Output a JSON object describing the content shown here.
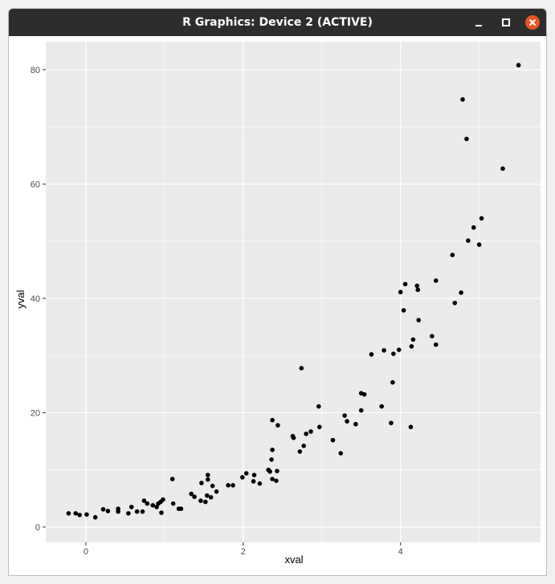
{
  "window": {
    "title": "R Graphics: Device 2 (ACTIVE)"
  },
  "chart_data": {
    "type": "scatter",
    "x_label": "xval",
    "y_label": "yval",
    "color": "#000000",
    "grid": true,
    "xlim": [
      -0.51,
      5.78
    ],
    "ylim": [
      -2.67,
      84.9
    ],
    "xticks": [
      0,
      2,
      4
    ],
    "yticks": [
      0,
      20,
      40,
      60,
      80
    ],
    "minor_xticks": [
      1,
      3,
      5
    ],
    "minor_yticks": [
      10,
      30,
      50,
      70
    ],
    "x": [
      -0.22,
      -0.13,
      -0.08,
      0.01,
      0.12,
      0.22,
      0.28,
      0.41,
      0.41,
      0.54,
      0.58,
      0.65,
      0.72,
      0.74,
      0.78,
      0.85,
      0.9,
      0.92,
      0.95,
      0.98,
      0.96,
      1.1,
      1.11,
      1.18,
      1.21,
      1.34,
      1.38,
      1.46,
      1.47,
      1.52,
      1.55,
      1.55,
      1.54,
      1.59,
      1.61,
      1.66,
      1.81,
      1.87,
      1.99,
      2.04,
      2.13,
      2.14,
      2.21,
      2.32,
      2.34,
      2.36,
      2.37,
      2.37,
      2.37,
      2.42,
      2.43,
      2.44,
      2.63,
      2.64,
      2.72,
      2.74,
      2.77,
      2.8,
      2.86,
      2.96,
      2.97,
      3.14,
      3.24,
      3.29,
      3.32,
      3.43,
      3.5,
      3.5,
      3.54,
      3.63,
      3.76,
      3.79,
      3.9,
      3.88,
      3.91,
      3.98,
      4.0,
      4.04,
      4.06,
      4.13,
      4.14,
      4.16,
      4.21,
      4.22,
      4.23,
      4.4,
      4.45,
      4.45,
      4.66,
      4.69,
      4.77,
      4.79,
      4.84,
      4.86,
      4.93,
      5.0,
      5.03,
      5.3,
      5.5
    ],
    "values": [
      2.4,
      2.4,
      2.1,
      2.2,
      1.7,
      3.1,
      2.8,
      3.2,
      2.7,
      2.4,
      3.5,
      2.7,
      2.7,
      4.6,
      4.1,
      3.8,
      3.5,
      4.1,
      4.4,
      4.8,
      2.5,
      8.4,
      4.1,
      3.2,
      3.2,
      5.8,
      5.3,
      4.6,
      7.7,
      4.4,
      8.3,
      9.1,
      5.5,
      5.2,
      7.2,
      6.2,
      7.3,
      7.3,
      8.7,
      9.4,
      8.0,
      9.1,
      7.6,
      10.0,
      9.7,
      11.8,
      13.5,
      18.7,
      8.4,
      8.1,
      9.8,
      17.8,
      15.9,
      15.6,
      13.2,
      27.8,
      14.2,
      16.3,
      16.7,
      21.1,
      17.5,
      15.2,
      12.9,
      19.5,
      18.5,
      18.0,
      23.4,
      20.4,
      23.2,
      30.2,
      21.1,
      30.9,
      25.3,
      18.2,
      30.3,
      31.0,
      41.1,
      37.9,
      42.5,
      17.5,
      31.6,
      32.8,
      42.2,
      41.5,
      36.2,
      33.4,
      31.9,
      43.1,
      47.6,
      39.2,
      41.0,
      74.8,
      67.9,
      50.1,
      52.4,
      49.4,
      54.0,
      62.7,
      80.8
    ]
  }
}
